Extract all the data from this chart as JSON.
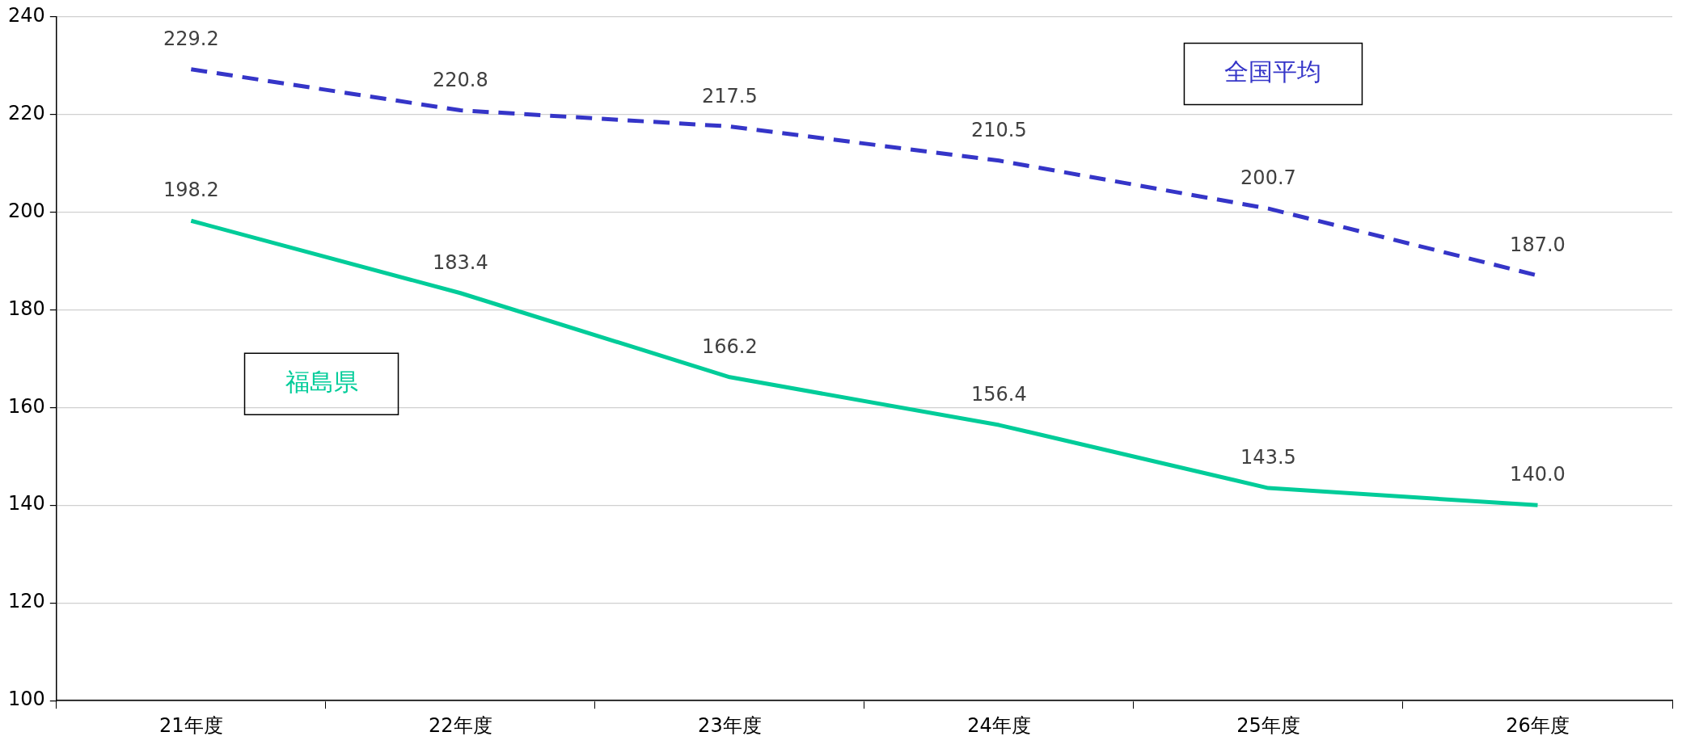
{
  "chart_data": {
    "type": "line",
    "categories": [
      "21年度",
      "22年度",
      "23年度",
      "24年度",
      "25年度",
      "26年度"
    ],
    "series": [
      {
        "name": "全国平均",
        "color": "#3535c8",
        "line_style": "dashed",
        "values": [
          229.2,
          220.8,
          217.5,
          210.5,
          200.7,
          187.0
        ],
        "value_labels": [
          "229.2",
          "220.8",
          "217.5",
          "210.5",
          "200.7",
          "187.0"
        ]
      },
      {
        "name": "福島県",
        "color": "#00cc99",
        "line_style": "solid",
        "values": [
          198.2,
          183.4,
          166.2,
          156.4,
          143.5,
          140.0
        ],
        "value_labels": [
          "198.2",
          "183.4",
          "166.2",
          "156.4",
          "143.5",
          "140.0"
        ]
      }
    ],
    "ylim": [
      100,
      240
    ],
    "yticks": [
      100,
      120,
      140,
      160,
      180,
      200,
      220,
      240
    ],
    "grid": "y",
    "legend": false,
    "marker": "none"
  }
}
